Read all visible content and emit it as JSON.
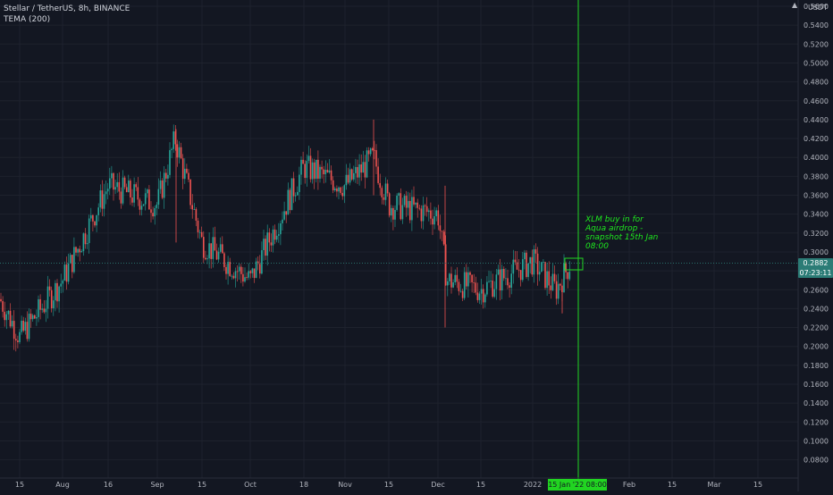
{
  "header": {
    "title": "Stellar / TetherUS, 8h, BINANCE",
    "indicator": "TEMA (200)"
  },
  "axis": {
    "unit": "USDT",
    "currency_menu_glyph": "▲",
    "y_ticks": [
      "0.5600",
      "0.5400",
      "0.5200",
      "0.5000",
      "0.4800",
      "0.4600",
      "0.4400",
      "0.4200",
      "0.4000",
      "0.3800",
      "0.3600",
      "0.3400",
      "0.3200",
      "0.3000",
      "0.2800",
      "0.2600",
      "0.2400",
      "0.2200",
      "0.2000",
      "0.1800",
      "0.1600",
      "0.1400",
      "0.1200",
      "0.1000",
      "0.0800"
    ],
    "x_ticks": [
      "15",
      "Aug",
      "16",
      "Sep",
      "15",
      "Oct",
      "18",
      "Nov",
      "15",
      "Dec",
      "15",
      "2022",
      "Feb",
      "15",
      "Mar",
      "15"
    ]
  },
  "last_price": {
    "value": "0.2882",
    "countdown": "07:23:11"
  },
  "crosshair_date": "15 Jan '22   08:00",
  "annotation": "XLM buy in for Aqua airdrop - snapshot 15th Jan 08:00",
  "colors": {
    "background": "#131722",
    "up": "#26a69a",
    "down": "#ef5350",
    "tema": "#2962ff",
    "marker": "#21d421",
    "grid": "#1e222d"
  },
  "chart_data": {
    "type": "candlestick",
    "title": "Stellar / TetherUS, 8h, BINANCE",
    "ylabel": "USDT",
    "ylim": [
      0.06,
      0.57
    ],
    "x": [
      "Jul 1",
      "Jul 15",
      "Aug 1",
      "Aug 16",
      "Sep 1",
      "Sep 7",
      "Sep 15",
      "Oct 1",
      "Oct 18",
      "Nov 1",
      "Nov 10",
      "Nov 15",
      "Dec 1",
      "Dec 4",
      "Dec 15",
      "Jan 1",
      "Jan 10",
      "Jan 15"
    ],
    "close": [
      0.25,
      0.21,
      0.27,
      0.37,
      0.35,
      0.42,
      0.31,
      0.27,
      0.39,
      0.37,
      0.4,
      0.35,
      0.34,
      0.27,
      0.26,
      0.29,
      0.26,
      0.288
    ],
    "series": [
      {
        "name": "TEMA (200)",
        "x": [
          "Jul 1",
          "Jul 20",
          "Aug 16",
          "Sep 1",
          "Sep 15",
          "Oct 1",
          "Oct 18",
          "Nov 1",
          "Nov 15",
          "Dec 1",
          "Dec 15",
          "Jan 1",
          "Jan 15"
        ],
        "values": [
          0.22,
          0.18,
          0.27,
          0.33,
          0.35,
          0.31,
          0.34,
          0.39,
          0.39,
          0.35,
          0.28,
          0.26,
          0.26
        ]
      }
    ],
    "last_price": 0.2882,
    "marker_date": "15 Jan '22 08:00"
  }
}
